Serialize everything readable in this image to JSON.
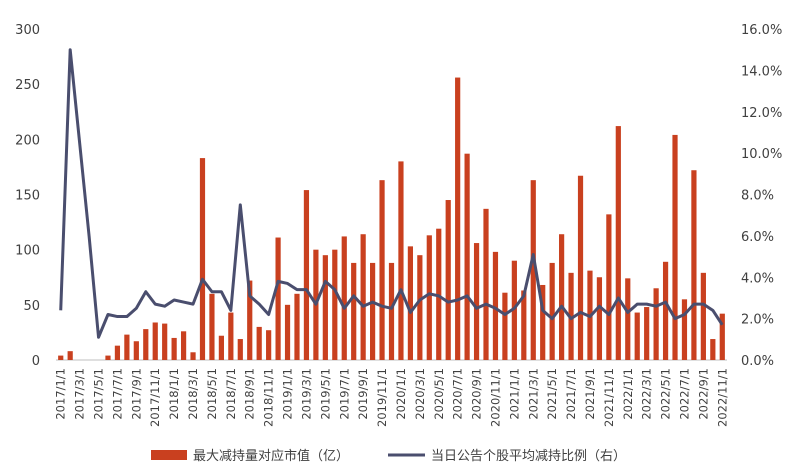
{
  "chart_data": {
    "type": "bar+line",
    "title": "",
    "colors": {
      "bar": "#C9401F",
      "line": "#4A4E6E",
      "axis": "#404040"
    },
    "x_tick_labels": [
      "2017/1/1",
      "2017/3/1",
      "2017/5/1",
      "2017/7/1",
      "2017/9/1",
      "2017/11/1",
      "2018/1/1",
      "2018/3/1",
      "2018/5/1",
      "2018/7/1",
      "2018/9/1",
      "2018/11/1",
      "2019/1/1",
      "2019/3/1",
      "2019/5/1",
      "2019/7/1",
      "2019/9/1",
      "2019/11/1",
      "2020/1/1",
      "2020/3/1",
      "2020/5/1",
      "2020/7/1",
      "2020/9/1",
      "2020/11/1",
      "2021/1/1",
      "2021/3/1",
      "2021/5/1",
      "2021/7/1",
      "2021/9/1",
      "2021/11/1",
      "2022/1/1",
      "2022/3/1",
      "2022/5/1",
      "2022/7/1",
      "2022/9/1",
      "2022/11/1"
    ],
    "left_axis": {
      "ticks": [
        "0",
        "50",
        "100",
        "150",
        "200",
        "250",
        "300"
      ],
      "ylim": [
        0,
        300
      ]
    },
    "right_axis": {
      "ticks": [
        "0.0%",
        "2.0%",
        "4.0%",
        "6.0%",
        "8.0%",
        "10.0%",
        "12.0%",
        "14.0%",
        "16.0%"
      ],
      "ylim": [
        0,
        16
      ]
    },
    "series": [
      {
        "name": "最大减持量对应市值（亿）",
        "type": "bar",
        "axis": "left",
        "values": [
          4,
          8,
          0,
          0,
          0,
          4,
          13,
          23,
          17,
          28,
          34,
          33,
          20,
          26,
          7,
          183,
          60,
          22,
          43,
          19,
          72,
          30,
          27,
          111,
          50,
          60,
          154,
          100,
          95,
          100,
          112,
          88,
          114,
          88,
          163,
          88,
          180,
          103,
          95,
          113,
          119,
          145,
          256,
          187,
          106,
          137,
          98,
          61,
          90,
          63,
          163,
          68,
          88,
          114,
          79,
          167,
          81,
          75,
          132,
          212,
          74,
          43,
          48,
          65,
          89,
          204,
          55,
          172,
          79,
          19,
          42
        ],
        "values_note": "one bar per month, 2017/1 through 2022/11"
      },
      {
        "name": "当日公告个股平均减持比例（右）",
        "type": "line",
        "axis": "right",
        "unit": "%",
        "values": [
          2.4,
          15.0,
          10.5,
          6.0,
          1.1,
          2.2,
          2.1,
          2.1,
          2.5,
          3.3,
          2.7,
          2.6,
          2.9,
          2.8,
          2.7,
          3.9,
          3.3,
          3.3,
          2.4,
          7.5,
          3.1,
          2.7,
          2.2,
          3.8,
          3.7,
          3.4,
          3.4,
          2.7,
          3.8,
          3.4,
          2.5,
          3.1,
          2.6,
          2.8,
          2.6,
          2.5,
          3.4,
          2.3,
          2.9,
          3.2,
          3.1,
          2.8,
          2.9,
          3.1,
          2.5,
          2.7,
          2.5,
          2.2,
          2.5,
          3.1,
          5.1,
          2.4,
          2.0,
          2.6,
          2.0,
          2.3,
          2.1,
          2.6,
          2.2,
          3.0,
          2.3,
          2.7,
          2.7,
          2.6,
          2.8,
          2.0,
          2.2,
          2.7,
          2.7,
          2.4,
          1.7
        ]
      }
    ],
    "legend": {
      "position": "bottom",
      "items": [
        "最大减持量对应市值（亿）",
        "当日公告个股平均减持比例（右）"
      ]
    }
  }
}
